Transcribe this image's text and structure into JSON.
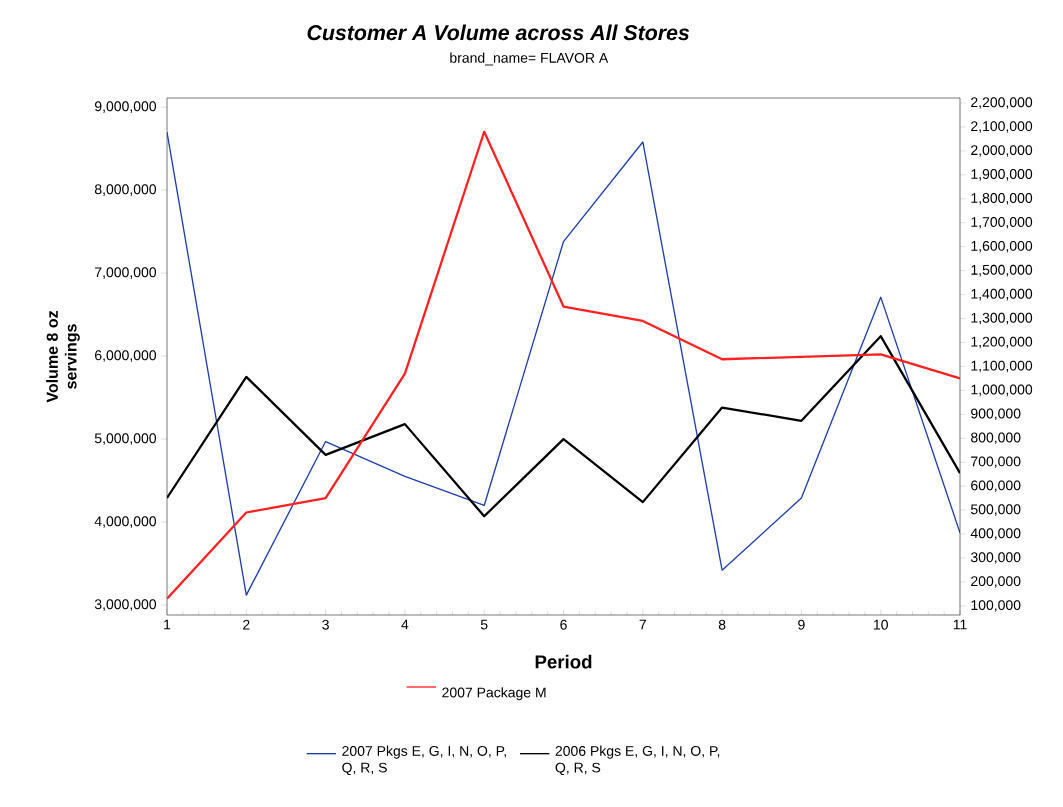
{
  "chart_data": {
    "type": "line",
    "title": "Customer A  Volume across All Stores",
    "subtitle": "brand_name=   FLAVOR A",
    "xlabel": "Period",
    "ylabel": "Volume 8 oz servings",
    "x": [
      1,
      2,
      3,
      4,
      5,
      6,
      7,
      8,
      9,
      10,
      11
    ],
    "series": [
      {
        "name": "2007 Package M",
        "color": "#ff2020",
        "axis": "y2",
        "values": [
          130000,
          490000,
          550000,
          1070000,
          2080000,
          1350000,
          1290000,
          1130000,
          1140000,
          1150000,
          1050000
        ]
      },
      {
        "name": "2007 Pkgs E, G, I, N, O, P, Q, R, S",
        "color": "#1f3fa8",
        "values": [
          8700000,
          3120000,
          4970000,
          4550000,
          4200000,
          7380000,
          8580000,
          3420000,
          4290000,
          6710000,
          3870000
        ]
      },
      {
        "name": "2006 Pkgs E, G, I, N, O, P, Q, R, S",
        "color": "#000000",
        "values": [
          4290000,
          5750000,
          4810000,
          5180000,
          4070000,
          5000000,
          4240000,
          5380000,
          5220000,
          6240000,
          4590000
        ]
      }
    ],
    "xlim": [
      1,
      11
    ],
    "xticks": [
      1,
      2,
      3,
      4,
      5,
      6,
      7,
      8,
      9,
      10,
      11
    ],
    "ylim": [
      2880000,
      9110000
    ],
    "yticks": [
      {
        "value": 3000000,
        "label": "3,000,000"
      },
      {
        "value": 4000000,
        "label": "4,000,000"
      },
      {
        "value": 5000000,
        "label": "5,000,000"
      },
      {
        "value": 6000000,
        "label": "6,000,000"
      },
      {
        "value": 7000000,
        "label": "7,000,000"
      },
      {
        "value": 8000000,
        "label": "8,000,000"
      },
      {
        "value": 9000000,
        "label": "9,000,000"
      }
    ],
    "y2lim": [
      62000,
      2221000
    ],
    "y2ticks": [
      {
        "value": 100000,
        "label": "100,000"
      },
      {
        "value": 200000,
        "label": "200,000"
      },
      {
        "value": 300000,
        "label": "300,000"
      },
      {
        "value": 400000,
        "label": "400,000"
      },
      {
        "value": 500000,
        "label": "500,000"
      },
      {
        "value": 600000,
        "label": "600,000"
      },
      {
        "value": 700000,
        "label": "700,000"
      },
      {
        "value": 800000,
        "label": "800,000"
      },
      {
        "value": 900000,
        "label": "900,000"
      },
      {
        "value": 1000000,
        "label": "1,000,000"
      },
      {
        "value": 1100000,
        "label": "1,100,000"
      },
      {
        "value": 1200000,
        "label": "1,200,000"
      },
      {
        "value": 1300000,
        "label": "1,300,000"
      },
      {
        "value": 1400000,
        "label": "1,400,000"
      },
      {
        "value": 1500000,
        "label": "1,500,000"
      },
      {
        "value": 1600000,
        "label": "1,600,000"
      },
      {
        "value": 1700000,
        "label": "1,700,000"
      },
      {
        "value": 1800000,
        "label": "1,800,000"
      },
      {
        "value": 1900000,
        "label": "1,900,000"
      },
      {
        "value": 2000000,
        "label": "2,000,000"
      },
      {
        "value": 2100000,
        "label": "2,100,000"
      },
      {
        "value": 2200000,
        "label": "2,200,000"
      }
    ],
    "legend": "bottom",
    "marker": "none"
  }
}
